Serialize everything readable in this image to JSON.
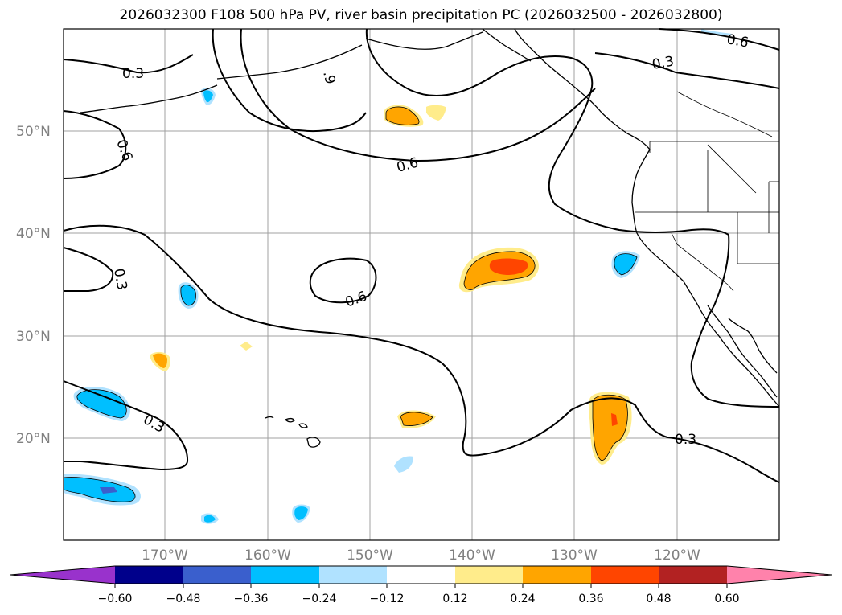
{
  "title": "2026032300 F108 500 hPa PV, river basin precipitation PC (2026032500 - 2026032800)",
  "map": {
    "lat_labels": [
      "50°N",
      "40°N",
      "30°N",
      "20°N"
    ],
    "lon_labels": [
      "170°W",
      "160°W",
      "150°W",
      "140°W",
      "130°W",
      "120°W"
    ],
    "contour_labels": [
      "0.3",
      "0.6",
      ".9",
      "0.6",
      "0.3",
      "0.6",
      "0.3",
      "0.6",
      "0.3",
      "0.3"
    ],
    "gridline_color": "#a0a0a0"
  },
  "colorbar": {
    "ticks": [
      "−0.60",
      "−0.48",
      "−0.36",
      "−0.24",
      "−0.12",
      "0.12",
      "0.24",
      "0.36",
      "0.48",
      "0.60"
    ],
    "colors": {
      "below": "#9932cc",
      "b1": "#00008b",
      "b2": "#3a5fcd",
      "b3": "#00bfff",
      "b4": "#b0e2ff",
      "b5": "#ffffff",
      "b6": "#ffec8b",
      "b7": "#ffa500",
      "b8": "#ff4500",
      "b9": "#b22222",
      "above": "#ff82ab"
    }
  }
}
